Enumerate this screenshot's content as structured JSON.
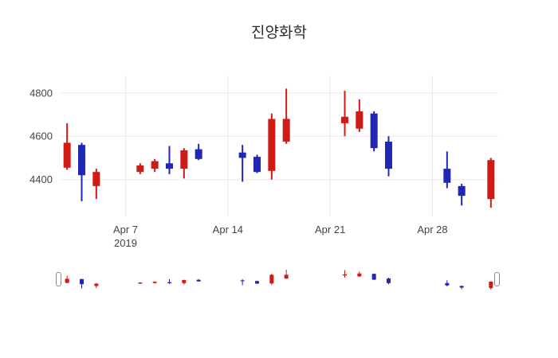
{
  "chart_data": {
    "type": "candlestick",
    "title": "진양화학",
    "legend": "none",
    "grid": "on",
    "colors": {
      "increasing": "#cf1b16",
      "decreasing": "#2027b4",
      "grid": "#ebebeb",
      "tick_text": "#444444",
      "background": "#ffffff"
    },
    "x_axis": {
      "range": [
        "2019-04-02T12:00",
        "2019-05-02T12:00"
      ],
      "ticks": [
        {
          "date": "2019-04-07",
          "label": "Apr 7",
          "sublabel": "2019"
        },
        {
          "date": "2019-04-14",
          "label": "Apr 14",
          "sublabel": ""
        },
        {
          "date": "2019-04-21",
          "label": "Apr 21",
          "sublabel": ""
        },
        {
          "date": "2019-04-28",
          "label": "Apr 28",
          "sublabel": ""
        }
      ]
    },
    "y_axis": {
      "range": [
        4230,
        4880
      ],
      "ticks": [
        4400,
        4600,
        4800
      ]
    },
    "candles": [
      {
        "date": "2019-04-03",
        "open": 4455,
        "high": 4660,
        "low": 4445,
        "close": 4570
      },
      {
        "date": "2019-04-04",
        "open": 4560,
        "high": 4570,
        "low": 4300,
        "close": 4420
      },
      {
        "date": "2019-04-05",
        "open": 4370,
        "high": 4450,
        "low": 4310,
        "close": 4435
      },
      {
        "date": "2019-04-08",
        "open": 4435,
        "high": 4475,
        "low": 4425,
        "close": 4465
      },
      {
        "date": "2019-04-09",
        "open": 4450,
        "high": 4495,
        "low": 4435,
        "close": 4485
      },
      {
        "date": "2019-04-10",
        "open": 4475,
        "high": 4555,
        "low": 4425,
        "close": 4450
      },
      {
        "date": "2019-04-11",
        "open": 4450,
        "high": 4545,
        "low": 4405,
        "close": 4535
      },
      {
        "date": "2019-04-12",
        "open": 4540,
        "high": 4565,
        "low": 4490,
        "close": 4495
      },
      {
        "date": "2019-04-15",
        "open": 4525,
        "high": 4560,
        "low": 4390,
        "close": 4500
      },
      {
        "date": "2019-04-16",
        "open": 4505,
        "high": 4515,
        "low": 4430,
        "close": 4435
      },
      {
        "date": "2019-04-17",
        "open": 4440,
        "high": 4705,
        "low": 4400,
        "close": 4680
      },
      {
        "date": "2019-04-18",
        "open": 4575,
        "high": 4820,
        "low": 4565,
        "close": 4680
      },
      {
        "date": "2019-04-22",
        "open": 4660,
        "high": 4810,
        "low": 4600,
        "close": 4690
      },
      {
        "date": "2019-04-23",
        "open": 4635,
        "high": 4770,
        "low": 4620,
        "close": 4715
      },
      {
        "date": "2019-04-24",
        "open": 4705,
        "high": 4715,
        "low": 4530,
        "close": 4545
      },
      {
        "date": "2019-04-25",
        "open": 4575,
        "high": 4600,
        "low": 4415,
        "close": 4450
      },
      {
        "date": "2019-04-29",
        "open": 4450,
        "high": 4530,
        "low": 4360,
        "close": 4385
      },
      {
        "date": "2019-04-30",
        "open": 4370,
        "high": 4380,
        "low": 4280,
        "close": 4325
      },
      {
        "date": "2019-05-02",
        "open": 4310,
        "high": 4500,
        "low": 4270,
        "close": 4490
      }
    ],
    "rangeslider": {
      "visible": true
    }
  }
}
